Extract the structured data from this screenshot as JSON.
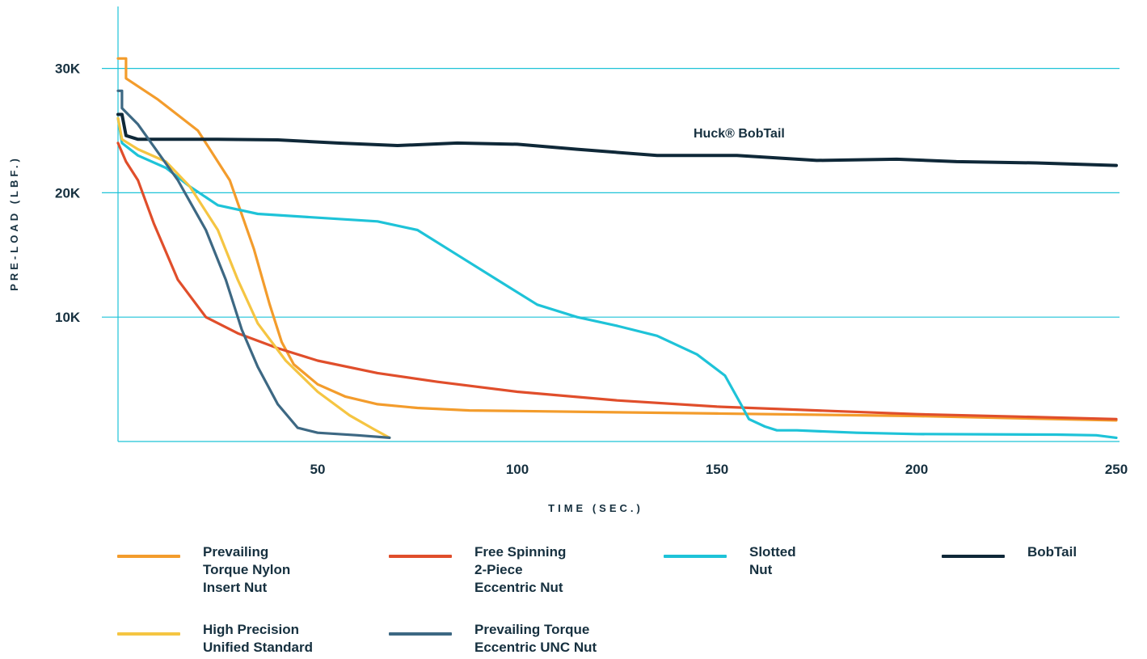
{
  "chart_data": {
    "type": "line",
    "xlabel": "TIME (SEC.)",
    "ylabel": "PRE-LOAD (LBF.)",
    "xlim": [
      0,
      250
    ],
    "ylim": [
      0,
      33000
    ],
    "x_ticks": [
      {
        "value": 50,
        "label": "50"
      },
      {
        "value": 100,
        "label": "100"
      },
      {
        "value": 150,
        "label": "150"
      },
      {
        "value": 200,
        "label": "200"
      },
      {
        "value": 250,
        "label": "250"
      }
    ],
    "y_ticks": [
      {
        "value": 10000,
        "label": "10K"
      },
      {
        "value": 20000,
        "label": "20K"
      },
      {
        "value": 30000,
        "label": "30K"
      }
    ],
    "grid": "horizontal",
    "legend_position": "bottom",
    "annotations": [
      {
        "text": "Huck® BobTail",
        "x": 145,
        "y": 24800
      }
    ],
    "series": [
      {
        "name": "Prevailing Torque Nylon Insert Nut",
        "legend_label": "Prevailing\nTorque Nylon\nInsert Nut",
        "color": "#f39c2c",
        "points": [
          [
            0,
            30800
          ],
          [
            2,
            30800
          ],
          [
            2,
            29200
          ],
          [
            10,
            27500
          ],
          [
            20,
            25000
          ],
          [
            28,
            21000
          ],
          [
            34,
            15500
          ],
          [
            38,
            11000
          ],
          [
            41,
            8000
          ],
          [
            44,
            6200
          ],
          [
            50,
            4600
          ],
          [
            57,
            3600
          ],
          [
            65,
            3000
          ],
          [
            75,
            2700
          ],
          [
            88,
            2500
          ],
          [
            100,
            2450
          ],
          [
            125,
            2350
          ],
          [
            150,
            2250
          ],
          [
            200,
            2050
          ],
          [
            250,
            1700
          ]
        ]
      },
      {
        "name": "Free Spinning 2-Piece Eccentric Nut",
        "legend_label": "Free Spinning\n2-Piece\nEccentric Nut",
        "color": "#e04e2b",
        "points": [
          [
            0,
            24000
          ],
          [
            2,
            22500
          ],
          [
            5,
            21000
          ],
          [
            9,
            17500
          ],
          [
            15,
            13000
          ],
          [
            22,
            10000
          ],
          [
            30,
            8700
          ],
          [
            40,
            7500
          ],
          [
            50,
            6500
          ],
          [
            65,
            5500
          ],
          [
            80,
            4800
          ],
          [
            100,
            4000
          ],
          [
            125,
            3300
          ],
          [
            150,
            2800
          ],
          [
            175,
            2500
          ],
          [
            200,
            2200
          ],
          [
            225,
            2000
          ],
          [
            250,
            1800
          ]
        ]
      },
      {
        "name": "Slotted Nut",
        "legend_label": "Slotted\nNut",
        "color": "#1ec3d8",
        "points": [
          [
            0,
            26000
          ],
          [
            1,
            24000
          ],
          [
            5,
            23000
          ],
          [
            12,
            22000
          ],
          [
            18,
            20500
          ],
          [
            25,
            19000
          ],
          [
            35,
            18300
          ],
          [
            50,
            18000
          ],
          [
            65,
            17700
          ],
          [
            75,
            17000
          ],
          [
            85,
            15000
          ],
          [
            95,
            13000
          ],
          [
            105,
            11000
          ],
          [
            115,
            10000
          ],
          [
            125,
            9300
          ],
          [
            135,
            8500
          ],
          [
            145,
            7000
          ],
          [
            152,
            5300
          ],
          [
            156,
            3000
          ],
          [
            158,
            1800
          ],
          [
            162,
            1200
          ],
          [
            165,
            900
          ],
          [
            170,
            900
          ],
          [
            185,
            700
          ],
          [
            200,
            600
          ],
          [
            235,
            550
          ],
          [
            245,
            500
          ],
          [
            250,
            300
          ]
        ]
      },
      {
        "name": "BobTail",
        "legend_label": "BobTail",
        "color": "#0f2838",
        "points": [
          [
            0,
            26300
          ],
          [
            1,
            26300
          ],
          [
            2,
            24600
          ],
          [
            5,
            24300
          ],
          [
            25,
            24300
          ],
          [
            40,
            24250
          ],
          [
            55,
            24000
          ],
          [
            70,
            23800
          ],
          [
            85,
            24000
          ],
          [
            100,
            23900
          ],
          [
            115,
            23500
          ],
          [
            135,
            23000
          ],
          [
            155,
            23000
          ],
          [
            175,
            22600
          ],
          [
            195,
            22700
          ],
          [
            210,
            22500
          ],
          [
            230,
            22400
          ],
          [
            250,
            22200
          ]
        ]
      },
      {
        "name": "High Precision Unified Standard",
        "legend_label": "High Precision\nUnified Standard",
        "color": "#f5c542",
        "points": [
          [
            0,
            26000
          ],
          [
            1,
            24300
          ],
          [
            5,
            23500
          ],
          [
            12,
            22500
          ],
          [
            18,
            20500
          ],
          [
            25,
            17000
          ],
          [
            30,
            13000
          ],
          [
            35,
            9500
          ],
          [
            42,
            6500
          ],
          [
            50,
            4000
          ],
          [
            58,
            2100
          ],
          [
            64,
            1000
          ],
          [
            68,
            300
          ]
        ]
      },
      {
        "name": "Prevailing Torque Eccentric UNC Nut",
        "legend_label": "Prevailing Torque\nEccentric UNC Nut",
        "color": "#3d6883",
        "points": [
          [
            0,
            28200
          ],
          [
            1,
            28200
          ],
          [
            1,
            26800
          ],
          [
            5,
            25500
          ],
          [
            15,
            21000
          ],
          [
            22,
            17000
          ],
          [
            27,
            13000
          ],
          [
            31,
            9000
          ],
          [
            35,
            6000
          ],
          [
            40,
            3000
          ],
          [
            45,
            1100
          ],
          [
            50,
            700
          ],
          [
            60,
            500
          ],
          [
            68,
            300
          ]
        ]
      }
    ]
  }
}
